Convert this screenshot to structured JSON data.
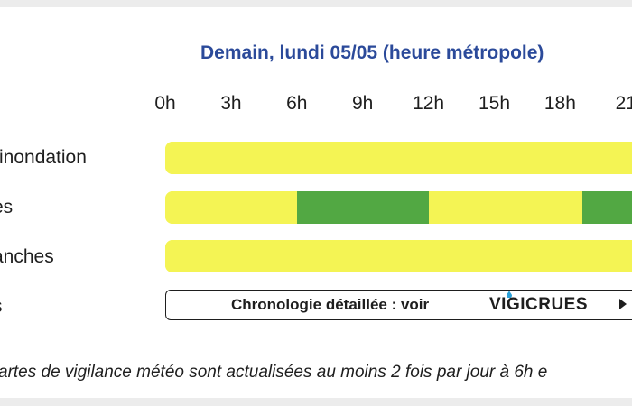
{
  "title": "Demain, lundi 05/05 (heure métropole)",
  "hours": [
    "0h",
    "3h",
    "6h",
    "9h",
    "12h",
    "15h",
    "18h",
    "21"
  ],
  "rows": [
    {
      "label": "-inondation",
      "segments": [
        {
          "from": 0,
          "to": 24,
          "level": "jaune"
        }
      ]
    },
    {
      "label": "es",
      "segments": [
        {
          "from": 0,
          "to": 6,
          "level": "jaune"
        },
        {
          "from": 6,
          "to": 12,
          "level": "vert"
        },
        {
          "from": 12,
          "to": 19,
          "level": "jaune"
        },
        {
          "from": 19,
          "to": 24,
          "level": "vert"
        }
      ]
    },
    {
      "label": "anches",
      "segments": [
        {
          "from": 0,
          "to": 24,
          "level": "jaune"
        }
      ]
    },
    {
      "label": "s"
    }
  ],
  "colors": {
    "jaune": "#f4f454",
    "vert": "#52a843",
    "title": "#2b4a9a"
  },
  "vigicrues": {
    "text": "Chronologie détaillée : voir",
    "logo": "VIGICRUES",
    "arrow_icon": "triangle-right-icon"
  },
  "footnote": "artes de vigilance météo sont actualisées au moins 2 fois par jour à 6h e"
}
